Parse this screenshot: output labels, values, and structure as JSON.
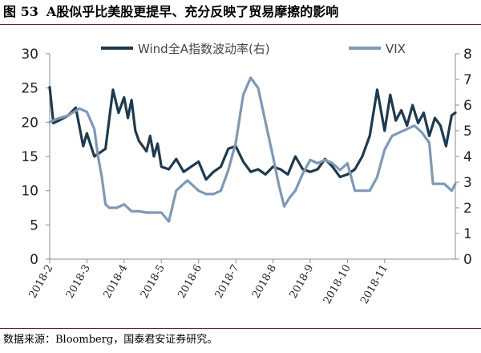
{
  "figure": {
    "number": "图 53",
    "title": "A股似乎比美股更提早、充分反映了贸易摩擦的影响",
    "source": "数据来源：Bloomberg，国泰君安证券研究。"
  },
  "chart_data": {
    "type": "line",
    "title": "",
    "x_tick_labels": [
      "2018-2",
      "2018-3",
      "2018-4",
      "2018-5",
      "2018-6",
      "2018-7",
      "2018-8",
      "2018-9",
      "2018-10",
      "2018-11"
    ],
    "y_left": {
      "range": [
        0,
        30
      ],
      "ticks": [
        0,
        5,
        10,
        15,
        20,
        25,
        30
      ]
    },
    "y_right": {
      "range": [
        0,
        8
      ],
      "ticks": [
        0,
        1,
        2,
        3,
        4,
        5,
        6,
        7,
        8
      ]
    },
    "legend_position": "top",
    "grid": false,
    "series": [
      {
        "name": "Wind全A指数波动率(右)",
        "axis": "right",
        "color": "#1f3a4f",
        "x": [
          0,
          0.1,
          0.25,
          0.5,
          0.7,
          0.9,
          1.0,
          1.2,
          1.5,
          1.7,
          1.85,
          2.0,
          2.1,
          2.2,
          2.3,
          2.4,
          2.5,
          2.6,
          2.7,
          2.8,
          2.9,
          3.0,
          3.2,
          3.4,
          3.6,
          3.8,
          4.0,
          4.2,
          4.4,
          4.6,
          4.8,
          5.0,
          5.2,
          5.4,
          5.6,
          5.8,
          6.0,
          6.2,
          6.4,
          6.6,
          6.8,
          7.0,
          7.2,
          7.4,
          7.6,
          7.8,
          8.0,
          8.2,
          8.4,
          8.6,
          8.8,
          9.0,
          9.15,
          9.3,
          9.45,
          9.6,
          9.75,
          9.9,
          10.05,
          10.2,
          10.35,
          10.5,
          10.65,
          10.8,
          10.9
        ],
        "y": [
          6.7,
          5.3,
          5.4,
          5.6,
          5.9,
          4.4,
          4.9,
          4.0,
          4.3,
          6.6,
          5.7,
          6.3,
          5.5,
          6.2,
          5.0,
          4.6,
          4.4,
          4.2,
          4.8,
          4.0,
          4.5,
          3.6,
          3.5,
          3.9,
          3.4,
          3.6,
          3.8,
          3.1,
          3.4,
          3.6,
          4.3,
          4.4,
          3.8,
          3.4,
          3.5,
          3.3,
          3.6,
          3.5,
          3.3,
          4.0,
          3.5,
          3.4,
          3.5,
          3.9,
          3.6,
          3.2,
          3.3,
          3.5,
          4.0,
          4.8,
          6.6,
          5.0,
          6.4,
          5.4,
          5.8,
          5.2,
          6.0,
          5.3,
          5.7,
          4.8,
          5.5,
          5.2,
          4.4,
          5.6,
          5.7
        ]
      },
      {
        "name": "VIX",
        "axis": "left",
        "color": "#7f99b5",
        "x": [
          0,
          0.2,
          0.5,
          0.8,
          1.0,
          1.2,
          1.3,
          1.4,
          1.5,
          1.6,
          1.8,
          2.0,
          2.2,
          2.4,
          2.6,
          2.8,
          3.0,
          3.2,
          3.4,
          3.6,
          3.7,
          3.8,
          4.0,
          4.2,
          4.4,
          4.6,
          4.8,
          5.0,
          5.2,
          5.4,
          5.6,
          5.8,
          6.0,
          6.15,
          6.3,
          6.45,
          6.6,
          6.8,
          7.0,
          7.2,
          7.4,
          7.6,
          7.8,
          8.0,
          8.2,
          8.4,
          8.6,
          8.8,
          9.0,
          9.2,
          9.4,
          9.6,
          9.8,
          10.0,
          10.2,
          10.3,
          10.4,
          10.6,
          10.8,
          10.9
        ],
        "y": [
          20,
          20.5,
          21,
          22,
          21.5,
          19,
          15,
          12,
          8,
          7.5,
          7.5,
          8,
          7,
          7,
          6.8,
          6.8,
          6.8,
          5.5,
          10,
          11,
          11.5,
          11,
          10,
          9.5,
          9.5,
          10,
          13,
          17,
          24,
          26.5,
          25,
          20,
          15,
          11,
          7.7,
          9,
          10,
          12.5,
          14.5,
          14,
          14.5,
          14,
          13,
          14,
          10,
          10,
          10,
          12,
          16,
          18,
          18.5,
          19,
          19.5,
          18.5,
          17,
          11,
          11,
          11,
          10,
          11
        ]
      }
    ]
  }
}
